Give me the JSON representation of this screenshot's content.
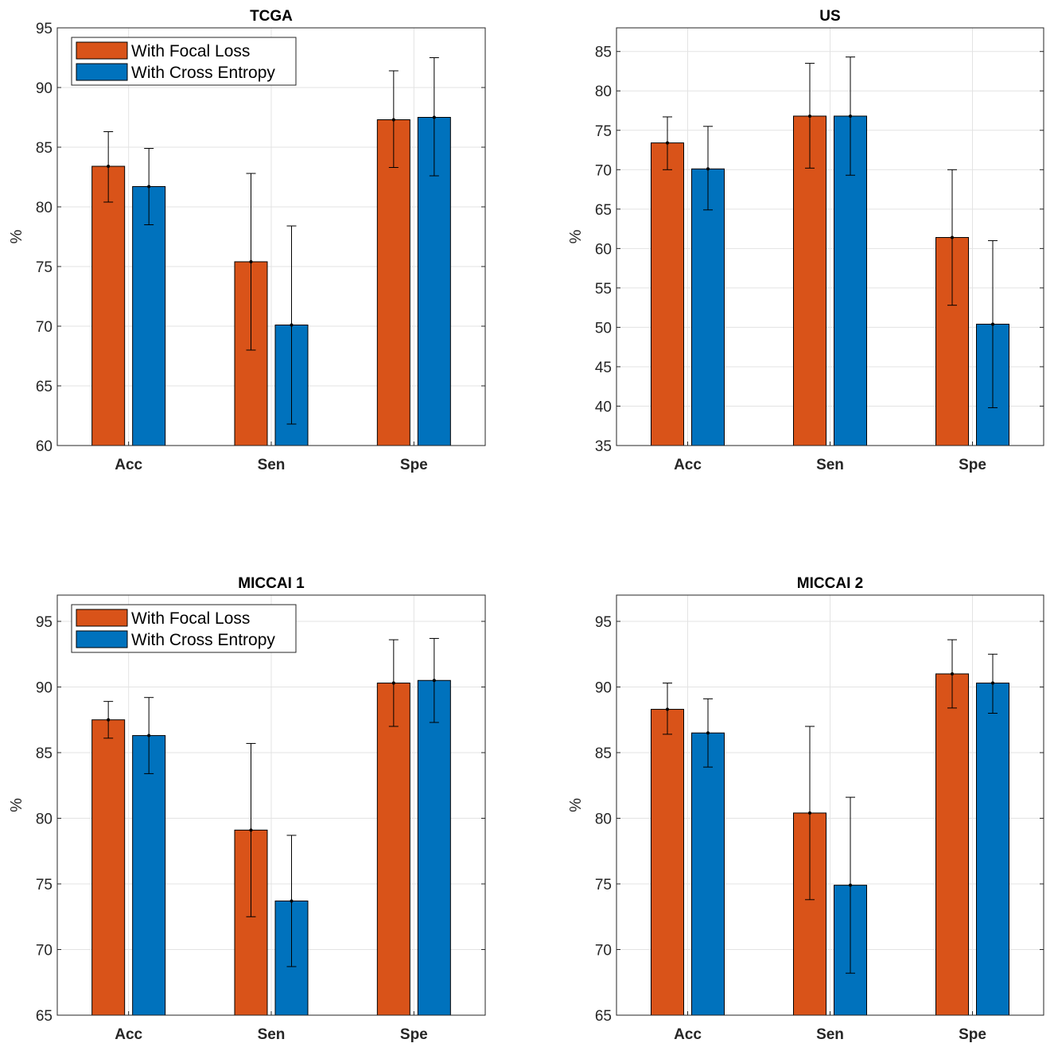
{
  "colors": {
    "focal": "#D95319",
    "cross": "#0072BD",
    "grid": "#e3e3e3",
    "axis": "#262626"
  },
  "chart_data": [
    {
      "type": "bar",
      "title": "TCGA",
      "ylabel": "%",
      "xlabel": "",
      "ylim": [
        60,
        95
      ],
      "yticks": [
        60,
        65,
        70,
        75,
        80,
        85,
        90,
        95
      ],
      "categories": [
        "Acc",
        "Sen",
        "Spe"
      ],
      "grid": true,
      "legend": "top-left",
      "series": [
        {
          "name": "With Focal Loss",
          "values": [
            83.4,
            75.4,
            87.3
          ],
          "err_low": [
            80.4,
            68.0,
            83.3
          ],
          "err_high": [
            86.3,
            82.8,
            91.4
          ]
        },
        {
          "name": "With Cross Entropy",
          "values": [
            81.7,
            70.1,
            87.5
          ],
          "err_low": [
            78.5,
            61.8,
            82.6
          ],
          "err_high": [
            84.9,
            78.4,
            92.5
          ]
        }
      ]
    },
    {
      "type": "bar",
      "title": "US",
      "ylabel": "%",
      "xlabel": "",
      "ylim": [
        35,
        88
      ],
      "yticks": [
        35,
        40,
        45,
        50,
        55,
        60,
        65,
        70,
        75,
        80,
        85
      ],
      "categories": [
        "Acc",
        "Sen",
        "Spe"
      ],
      "grid": true,
      "legend": "none",
      "series": [
        {
          "name": "With Focal Loss",
          "values": [
            73.4,
            76.8,
            61.4
          ],
          "err_low": [
            70.0,
            70.2,
            52.8
          ],
          "err_high": [
            76.7,
            83.5,
            70.0
          ]
        },
        {
          "name": "With Cross Entropy",
          "values": [
            70.1,
            76.8,
            50.4
          ],
          "err_low": [
            64.9,
            69.3,
            39.8
          ],
          "err_high": [
            75.5,
            84.3,
            61.0
          ]
        }
      ]
    },
    {
      "type": "bar",
      "title": "MICCAI 1",
      "ylabel": "%",
      "xlabel": "",
      "ylim": [
        65,
        97
      ],
      "yticks": [
        65,
        70,
        75,
        80,
        85,
        90,
        95
      ],
      "categories": [
        "Acc",
        "Sen",
        "Spe"
      ],
      "grid": true,
      "legend": "top-left",
      "series": [
        {
          "name": "With Focal Loss",
          "values": [
            87.5,
            79.1,
            90.3
          ],
          "err_low": [
            86.1,
            72.5,
            87.0
          ],
          "err_high": [
            88.9,
            85.7,
            93.6
          ]
        },
        {
          "name": "With Cross Entropy",
          "values": [
            86.3,
            73.7,
            90.5
          ],
          "err_low": [
            83.4,
            68.7,
            87.3
          ],
          "err_high": [
            89.2,
            78.7,
            93.7
          ]
        }
      ]
    },
    {
      "type": "bar",
      "title": "MICCAI 2",
      "ylabel": "%",
      "xlabel": "",
      "ylim": [
        65,
        97
      ],
      "yticks": [
        65,
        70,
        75,
        80,
        85,
        90,
        95
      ],
      "categories": [
        "Acc",
        "Sen",
        "Spe"
      ],
      "grid": true,
      "legend": "none",
      "series": [
        {
          "name": "With Focal Loss",
          "values": [
            88.3,
            80.4,
            91.0
          ],
          "err_low": [
            86.4,
            73.8,
            88.4
          ],
          "err_high": [
            90.3,
            87.0,
            93.6
          ]
        },
        {
          "name": "With Cross Entropy",
          "values": [
            86.5,
            74.9,
            90.3
          ],
          "err_low": [
            83.9,
            68.2,
            88.0
          ],
          "err_high": [
            89.1,
            81.6,
            92.5
          ]
        }
      ]
    }
  ]
}
